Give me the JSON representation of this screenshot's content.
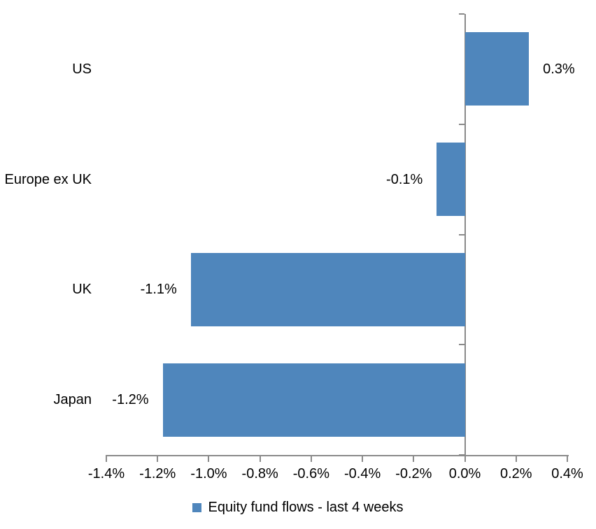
{
  "chart_data": {
    "type": "bar",
    "orientation": "horizontal",
    "categories": [
      "US",
      "Europe ex UK",
      "UK",
      "Japan"
    ],
    "values": [
      0.3,
      -0.1,
      -1.1,
      -1.2
    ],
    "bar_lengths_pct": [
      0.25,
      -0.11,
      -1.07,
      -1.18
    ],
    "data_labels": [
      "0.3%",
      "-0.1%",
      "-1.1%",
      "-1.2%"
    ],
    "series": [
      {
        "name": "Equity fund flows - last 4 weeks",
        "values": [
          0.3,
          -0.1,
          -1.1,
          -1.2
        ]
      }
    ],
    "title": "",
    "xlabel": "",
    "ylabel": "",
    "xlim": [
      -1.4,
      0.4
    ],
    "x_tick_step": 0.2,
    "x_tick_labels": [
      "-1.4%",
      "-1.2%",
      "-1.0%",
      "-0.8%",
      "-0.6%",
      "-0.4%",
      "-0.2%",
      "0.0%",
      "0.2%",
      "0.4%"
    ],
    "grid": false,
    "legend_position": "bottom"
  },
  "legend": {
    "label": "Equity fund flows - last 4 weeks"
  },
  "colors": {
    "bar": "#4F86BC",
    "axis": "#8A8A8A",
    "text": "#000000",
    "background": "#FFFFFF"
  }
}
